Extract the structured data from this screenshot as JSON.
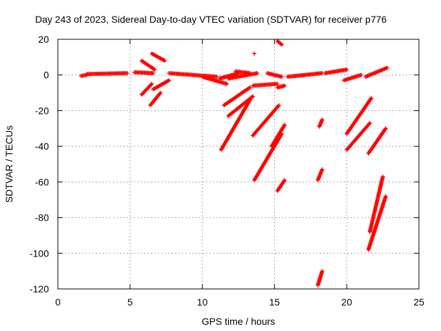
{
  "chart_data": {
    "type": "scatter",
    "title": "Day 243 of 2023, Sidereal Day-to-day VTEC variation (SDTVAR) for receiver p776",
    "xlabel": "GPS time / hours",
    "ylabel": "SDTVAR / TECUs",
    "xlim": [
      0,
      25
    ],
    "ylim": [
      -120,
      20
    ],
    "xticks": [
      0,
      5,
      10,
      15,
      20,
      25
    ],
    "yticks": [
      20,
      0,
      -20,
      -40,
      -60,
      -80,
      -100,
      -120
    ],
    "grid": true,
    "marker": "+",
    "series_color": "#ff0000",
    "segments": [
      {
        "x": [
          1.6,
          2.0
        ],
        "y": [
          -0.5,
          0.0
        ]
      },
      {
        "x": [
          2.0,
          4.8
        ],
        "y": [
          0.5,
          1.0
        ]
      },
      {
        "x": [
          5.3,
          6.6
        ],
        "y": [
          1.5,
          1.0
        ]
      },
      {
        "x": [
          5.8,
          6.7
        ],
        "y": [
          8.0,
          3.0
        ]
      },
      {
        "x": [
          6.5,
          7.4
        ],
        "y": [
          12.0,
          8.0
        ]
      },
      {
        "x": [
          5.8,
          6.5
        ],
        "y": [
          -11.0,
          -5.0
        ]
      },
      {
        "x": [
          6.4,
          7.1
        ],
        "y": [
          -17.0,
          -10.0
        ]
      },
      {
        "x": [
          6.6,
          7.7
        ],
        "y": [
          -8.0,
          -3.0
        ]
      },
      {
        "x": [
          7.7,
          11.0
        ],
        "y": [
          1.0,
          -1.0
        ]
      },
      {
        "x": [
          10.0,
          11.7
        ],
        "y": [
          -1.0,
          -5.0
        ]
      },
      {
        "x": [
          11.2,
          12.5
        ],
        "y": [
          -2.0,
          1.0
        ]
      },
      {
        "x": [
          12.3,
          13.3
        ],
        "y": [
          2.0,
          1.0
        ]
      },
      {
        "x": [
          11.8,
          13.8
        ],
        "y": [
          -2.0,
          1.0
        ]
      },
      {
        "x": [
          13.5,
          15.2
        ],
        "y": [
          -6.0,
          -5.0
        ]
      },
      {
        "x": [
          14.5,
          15.5
        ],
        "y": [
          1.0,
          -1.0
        ]
      },
      {
        "x": [
          15.2,
          15.7
        ],
        "y": [
          -7.0,
          -6.0
        ]
      },
      {
        "x": [
          13.6
        ],
        "y": [
          12.0
        ]
      },
      {
        "x": [
          15.2,
          15.5
        ],
        "y": [
          19.0,
          17.0
        ]
      },
      {
        "x": [
          11.5,
          13.3
        ],
        "y": [
          -17.0,
          -7.0
        ]
      },
      {
        "x": [
          11.8,
          13.5
        ],
        "y": [
          -23.0,
          -12.0
        ]
      },
      {
        "x": [
          11.3,
          13.3
        ],
        "y": [
          -42.0,
          -14.0
        ]
      },
      {
        "x": [
          13.5,
          15.3
        ],
        "y": [
          -34.0,
          -17.0
        ]
      },
      {
        "x": [
          13.6,
          15.5
        ],
        "y": [
          -59.0,
          -33.0
        ]
      },
      {
        "x": [
          14.8,
          15.7
        ],
        "y": [
          -40.0,
          -28.0
        ]
      },
      {
        "x": [
          15.2,
          15.7
        ],
        "y": [
          -65.0,
          -59.0
        ]
      },
      {
        "x": [
          15.9,
          18.3
        ],
        "y": [
          -1.0,
          1.0
        ]
      },
      {
        "x": [
          18.5,
          20.0
        ],
        "y": [
          1.0,
          3.0
        ]
      },
      {
        "x": [
          19.8,
          21.0
        ],
        "y": [
          -3.0,
          0.0
        ]
      },
      {
        "x": [
          21.3,
          22.8
        ],
        "y": [
          -1.0,
          4.0
        ]
      },
      {
        "x": [
          18.1,
          18.3
        ],
        "y": [
          -29.0,
          -25.0
        ]
      },
      {
        "x": [
          18.0,
          18.3
        ],
        "y": [
          -59.0,
          -53.0
        ]
      },
      {
        "x": [
          18.0,
          18.3
        ],
        "y": [
          -118.0,
          -110.0
        ]
      },
      {
        "x": [
          20.0,
          21.7
        ],
        "y": [
          -33.0,
          -13.0
        ]
      },
      {
        "x": [
          20.0,
          21.6
        ],
        "y": [
          -42.0,
          -27.0
        ]
      },
      {
        "x": [
          21.5,
          22.7
        ],
        "y": [
          -44.0,
          -30.0
        ]
      },
      {
        "x": [
          21.6,
          22.5
        ],
        "y": [
          -88.0,
          -57.0
        ]
      },
      {
        "x": [
          21.5,
          22.7
        ],
        "y": [
          -98.0,
          -68.0
        ]
      }
    ]
  }
}
